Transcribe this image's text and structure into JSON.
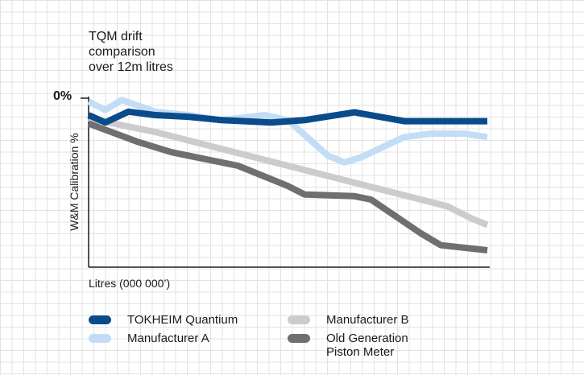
{
  "chart_data": {
    "type": "line",
    "title": "TQM drift\ncomparison\nover 12m litres",
    "xlabel": "Litres (000 000’)",
    "ylabel": "W&M Calibration %",
    "zero_label": "0%",
    "xlim": [
      0,
      12
    ],
    "ylim": [
      -5,
      0
    ],
    "grid": true,
    "legend_position": "bottom",
    "series": [
      {
        "name": "TOKHEIM Quantium",
        "color": "#0a4b8c",
        "x": [
          0,
          0.5,
          1.2,
          2,
          3,
          4,
          5.5,
          6.5,
          8,
          9.5,
          11,
          12
        ],
        "y": [
          -0.5,
          -0.72,
          -0.4,
          -0.5,
          -0.55,
          -0.65,
          -0.72,
          -0.65,
          -0.42,
          -0.68,
          -0.68,
          -0.68
        ]
      },
      {
        "name": "Manufacturer A",
        "color": "#c2ddf5",
        "x": [
          0,
          0.5,
          1,
          2,
          3,
          4,
          5.3,
          6,
          7.2,
          7.7,
          8.2,
          9.5,
          10.3,
          11.3,
          12
        ],
        "y": [
          -0.1,
          -0.35,
          -0.05,
          -0.4,
          -0.5,
          -0.65,
          -0.5,
          -0.65,
          -1.7,
          -1.9,
          -1.75,
          -1.15,
          -1.05,
          -1.05,
          -1.15
        ]
      },
      {
        "name": "Manufacturer B",
        "color": "#cccccc",
        "x": [
          0,
          2,
          4,
          6,
          8,
          10,
          10.8,
          11.5,
          12
        ],
        "y": [
          -0.6,
          -1.0,
          -1.5,
          -2.0,
          -2.5,
          -3.0,
          -3.2,
          -3.55,
          -3.75
        ]
      },
      {
        "name": "Old Generation\nPiston Meter",
        "color": "#6f6f72",
        "x": [
          0,
          1.5,
          2.5,
          4.5,
          6,
          6.5,
          8,
          8.5,
          10,
          10.6,
          12
        ],
        "y": [
          -0.75,
          -1.3,
          -1.6,
          -2.0,
          -2.6,
          -2.85,
          -2.9,
          -3.0,
          -4.0,
          -4.35,
          -4.5
        ]
      }
    ]
  }
}
